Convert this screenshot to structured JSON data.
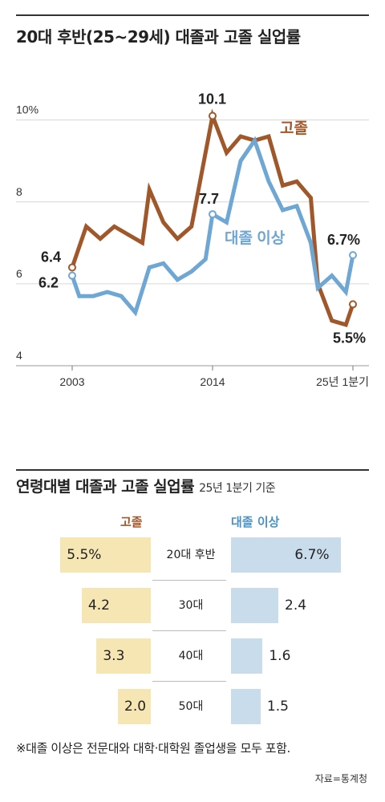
{
  "chart_data": [
    {
      "type": "line",
      "title": "20대 후반(25~29세) 대졸과 고졸 실업률",
      "ylim": [
        4,
        10.6
      ],
      "y_ticks": [
        {
          "value": 10,
          "label": "10%"
        },
        {
          "value": 8,
          "label": "8"
        },
        {
          "value": 6,
          "label": "6"
        },
        {
          "value": 4,
          "label": "4"
        }
      ],
      "x_ticks": [
        {
          "index": 0,
          "label": "2003"
        },
        {
          "index": 20,
          "label": "2014"
        },
        {
          "index": 40,
          "label": "25년 1분기"
        }
      ],
      "grid": true,
      "series": [
        {
          "name": "고졸",
          "color": "#a0582b",
          "values": [
            6.4,
            7.4,
            7.1,
            7.4,
            7.2,
            7.0,
            8.3,
            7.5,
            7.1,
            7.4,
            10.1,
            9.2,
            9.6,
            9.5,
            9.6,
            8.4,
            8.5,
            8.1,
            6.0,
            5.1,
            5.0,
            5.5
          ],
          "x_index": [
            0,
            2,
            4,
            6,
            8,
            10,
            11,
            13,
            15,
            17,
            20,
            22,
            24,
            26,
            28,
            30,
            32,
            34,
            35,
            37,
            39,
            40
          ],
          "point_labels": [
            {
              "index": 0,
              "text": "6.4"
            },
            {
              "index": 10,
              "text": "10.1"
            },
            {
              "index": 21,
              "text": "5.5%"
            }
          ]
        },
        {
          "name": "대졸 이상",
          "color": "#6ea6d4",
          "values": [
            6.2,
            5.7,
            5.7,
            5.8,
            5.7,
            5.3,
            6.4,
            6.5,
            6.1,
            6.3,
            6.6,
            7.7,
            7.5,
            9.0,
            9.5,
            8.5,
            7.8,
            7.9,
            7.0,
            5.9,
            6.2,
            5.8,
            6.7
          ],
          "x_index": [
            0,
            1,
            3,
            5,
            7,
            9,
            11,
            13,
            15,
            17,
            19,
            20,
            22,
            24,
            26,
            28,
            30,
            32,
            34,
            35,
            37,
            39,
            40
          ],
          "point_labels": [
            {
              "index": 0,
              "text": "6.2"
            },
            {
              "index": 11,
              "text": "7.7"
            },
            {
              "index": 22,
              "text": "6.7%"
            }
          ]
        }
      ]
    },
    {
      "type": "bar",
      "title": "연령대별 대졸과 고졸 실업률",
      "subtitle": "25년 1분기 기준",
      "categories": [
        "20대 후반",
        "30대",
        "40대",
        "50대"
      ],
      "series": [
        {
          "name": "고졸",
          "values": [
            5.5,
            4.2,
            3.3,
            2.0
          ],
          "labels": [
            "5.5%",
            "4.2",
            "3.3",
            "2.0"
          ],
          "color": "#f6e6b4"
        },
        {
          "name": "대졸 이상",
          "values": [
            6.7,
            2.4,
            1.6,
            1.5
          ],
          "labels": [
            "6.7%",
            "2.4",
            "1.6",
            "1.5"
          ],
          "color": "#c9dcec"
        }
      ]
    }
  ],
  "footnote": "※대졸 이상은 전문대와 대학·대학원 졸업생을 모두 포함.",
  "source": "자료=통계청"
}
